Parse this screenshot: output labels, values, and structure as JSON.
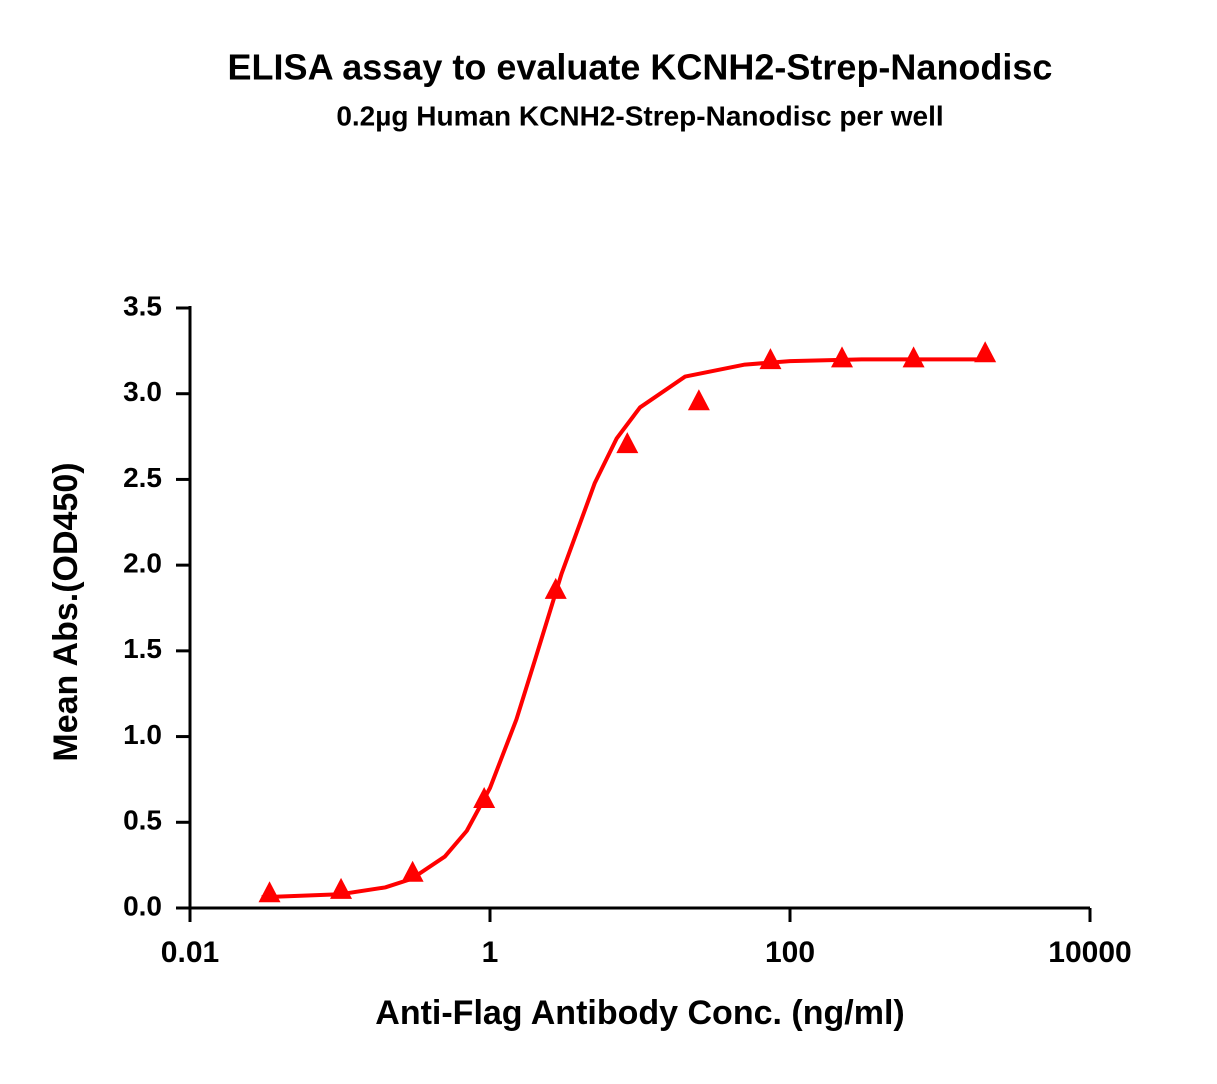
{
  "chart_data": {
    "type": "scatter",
    "title": "ELISA assay to evaluate KCNH2-Strep-Nanodisc",
    "subtitle": "0.2µg Human KCNH2-Strep-Nanodisc per well",
    "x_label": "Anti-Flag Antibody Conc. (ng/ml)",
    "y_label": "Mean Abs.(OD450)",
    "x_scale": "log",
    "xlim": [
      0.01,
      10000
    ],
    "xticks": [
      0.01,
      1,
      100,
      10000
    ],
    "ylim": [
      0,
      3.5
    ],
    "yticks": [
      {
        "value": 0,
        "label": "0.0"
      },
      0.5,
      {
        "value": 1,
        "label": "1.0"
      },
      1.5,
      {
        "value": 2,
        "label": "2.0"
      },
      2.5,
      {
        "value": 3,
        "label": "3.0"
      },
      3.5
    ],
    "series": [
      {
        "color": "#ff0000",
        "marker": "triangle",
        "x": [
          0.0339,
          0.1016,
          0.3048,
          0.9145,
          2.743,
          8.23,
          24.69,
          74.07,
          222.2,
          666.7,
          2000
        ],
        "values": [
          0.08,
          0.1,
          0.2,
          0.63,
          1.85,
          2.7,
          2.95,
          3.19,
          3.2,
          3.2,
          3.23
        ]
      },
      {
        "color": "#ff0000",
        "marker": "line",
        "x": [
          0.03,
          0.1,
          0.2,
          0.3,
          0.5,
          0.7,
          1,
          1.5,
          2,
          3,
          5,
          7,
          10,
          20,
          50,
          100,
          300,
          1000,
          2000
        ],
        "values": [
          0.063,
          0.08,
          0.12,
          0.17,
          0.3,
          0.45,
          0.7,
          1.1,
          1.45,
          1.95,
          2.48,
          2.74,
          2.92,
          3.1,
          3.17,
          3.19,
          3.2,
          3.2,
          3.2
        ]
      }
    ]
  }
}
